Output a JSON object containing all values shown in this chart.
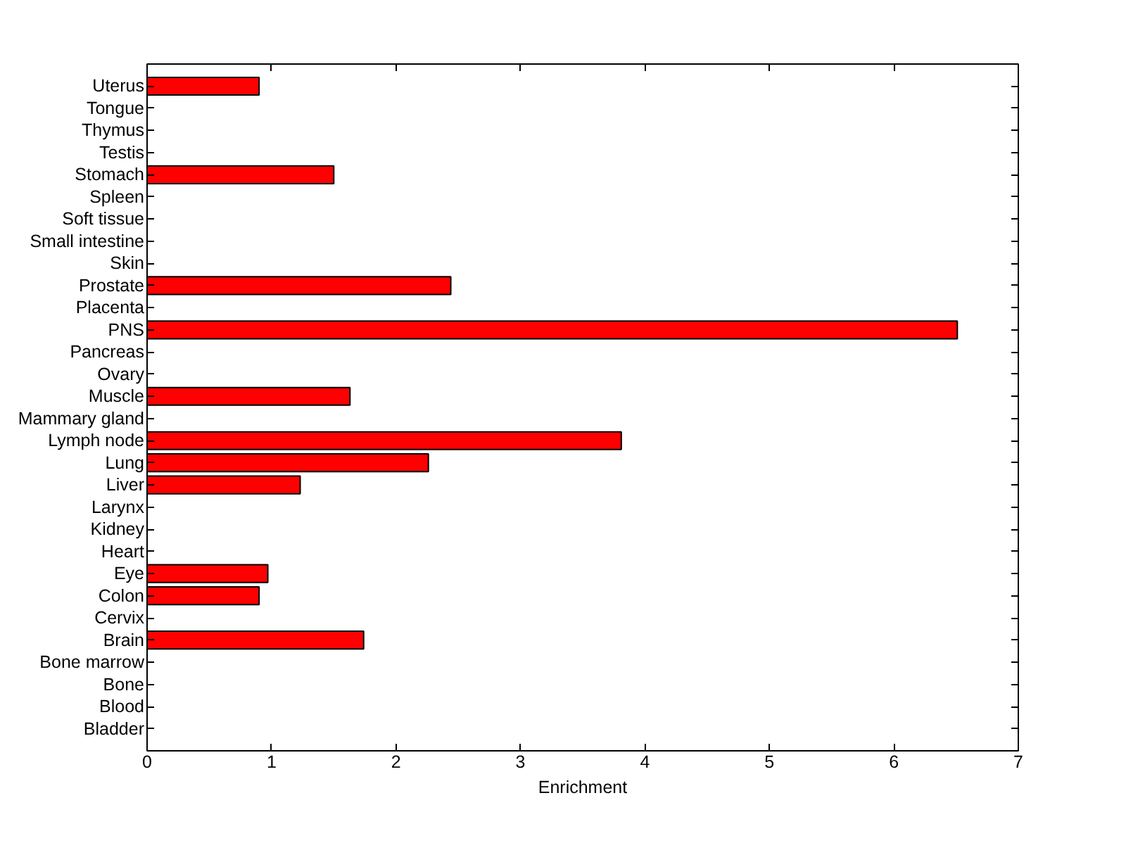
{
  "chart_data": {
    "type": "bar",
    "orientation": "horizontal",
    "categories": [
      "Uterus",
      "Tongue",
      "Thymus",
      "Testis",
      "Stomach",
      "Spleen",
      "Soft tissue",
      "Small intestine",
      "Skin",
      "Prostate",
      "Placenta",
      "PNS",
      "Pancreas",
      "Ovary",
      "Muscle",
      "Mammary gland",
      "Lymph node",
      "Lung",
      "Liver",
      "Larynx",
      "Kidney",
      "Heart",
      "Eye",
      "Colon",
      "Cervix",
      "Brain",
      "Bone marrow",
      "Bone",
      "Blood",
      "Bladder"
    ],
    "values": [
      0.9,
      0,
      0,
      0,
      1.5,
      0,
      0,
      0,
      0,
      2.44,
      0,
      6.51,
      0,
      0,
      1.63,
      0,
      3.81,
      2.26,
      1.23,
      0,
      0,
      0,
      0.97,
      0.9,
      0,
      1.74,
      0,
      0,
      0,
      0
    ],
    "color": "#ff0000",
    "xlim": [
      0,
      7
    ],
    "xticks": [
      0,
      1,
      2,
      3,
      4,
      5,
      6,
      7
    ],
    "xlabel": "Enrichment"
  }
}
